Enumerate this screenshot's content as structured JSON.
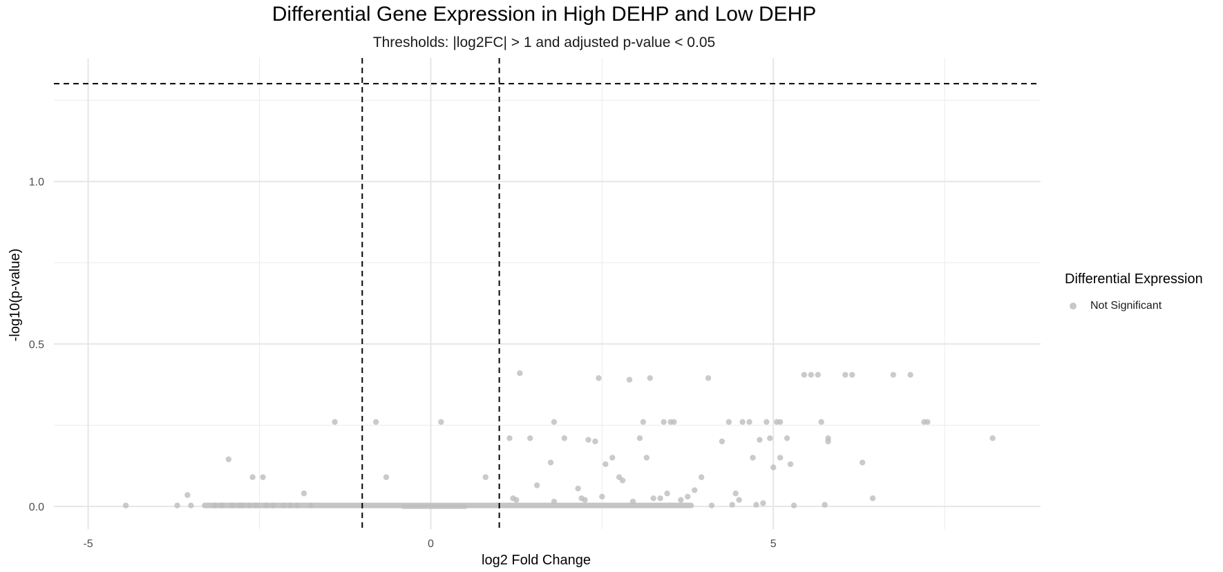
{
  "chart_data": {
    "type": "scatter",
    "title": "Differential Gene Expression in High DEHP and Low DEHP",
    "subtitle": "Thresholds: |log2FC| > 1 and adjusted p-value < 0.05",
    "xlabel": "log2 Fold Change",
    "ylabel": "-log10(p-value)",
    "xlim": [
      -5.5,
      8.9
    ],
    "ylim": [
      -0.07,
      1.38
    ],
    "x_ticks": [
      -5,
      0,
      5
    ],
    "x_tick_labels": [
      "-5",
      "0",
      "5"
    ],
    "y_ticks": [
      0,
      0.5,
      1
    ],
    "y_tick_labels": [
      "0.0",
      "0.5",
      "1.0"
    ],
    "grid": true,
    "thresholds": {
      "vertical": [
        -1,
        1
      ],
      "horizontal": 1.301
    },
    "legend": {
      "title": "Differential Expression",
      "position": "right",
      "entries": [
        "Not Significant"
      ]
    },
    "colors": {
      "not_significant": "#bdbdbd",
      "threshold_line": "#000000",
      "grid": "#ebebeb"
    },
    "series": [
      {
        "name": "Not Significant",
        "points": [
          [
            -4.45,
            0.003
          ],
          [
            -3.7,
            0.003
          ],
          [
            -3.55,
            0.035
          ],
          [
            -3.5,
            0.003
          ],
          [
            -3.15,
            0.003
          ],
          [
            -3.05,
            0.003
          ],
          [
            -2.95,
            0.145
          ],
          [
            -2.9,
            0.003
          ],
          [
            -2.8,
            0.003
          ],
          [
            -2.75,
            0.003
          ],
          [
            -2.65,
            0.003
          ],
          [
            -2.6,
            0.09
          ],
          [
            -2.55,
            0.003
          ],
          [
            -2.45,
            0.09
          ],
          [
            -2.4,
            0.003
          ],
          [
            -2.3,
            0.003
          ],
          [
            -2.15,
            0.003
          ],
          [
            -2.05,
            0.003
          ],
          [
            -1.95,
            0.003
          ],
          [
            -1.85,
            0.04
          ],
          [
            -1.75,
            0.003
          ],
          [
            -1.4,
            0.26
          ],
          [
            -0.8,
            0.26
          ],
          [
            -0.65,
            0.09
          ],
          [
            0.15,
            0.26
          ],
          [
            0.8,
            0.09
          ],
          [
            1.15,
            0.21
          ],
          [
            1.2,
            0.025
          ],
          [
            1.25,
            0.02
          ],
          [
            1.3,
            0.41
          ],
          [
            1.45,
            0.21
          ],
          [
            1.55,
            0.065
          ],
          [
            1.75,
            0.135
          ],
          [
            1.8,
            0.015
          ],
          [
            1.8,
            0.26
          ],
          [
            1.95,
            0.21
          ],
          [
            2.15,
            0.055
          ],
          [
            2.2,
            0.025
          ],
          [
            2.25,
            0.02
          ],
          [
            2.3,
            0.205
          ],
          [
            2.4,
            0.2
          ],
          [
            2.45,
            0.395
          ],
          [
            2.5,
            0.03
          ],
          [
            2.55,
            0.13
          ],
          [
            2.65,
            0.15
          ],
          [
            2.75,
            0.09
          ],
          [
            2.8,
            0.08
          ],
          [
            2.9,
            0.39
          ],
          [
            2.95,
            0.015
          ],
          [
            3.05,
            0.21
          ],
          [
            3.1,
            0.26
          ],
          [
            3.15,
            0.15
          ],
          [
            3.2,
            0.395
          ],
          [
            3.25,
            0.025
          ],
          [
            3.35,
            0.025
          ],
          [
            3.4,
            0.26
          ],
          [
            3.45,
            0.04
          ],
          [
            3.5,
            0.26
          ],
          [
            3.55,
            0.26
          ],
          [
            3.65,
            0.02
          ],
          [
            3.75,
            0.03
          ],
          [
            3.85,
            0.05
          ],
          [
            3.95,
            0.09
          ],
          [
            4.05,
            0.395
          ],
          [
            4.1,
            0.003
          ],
          [
            4.25,
            0.2
          ],
          [
            4.35,
            0.26
          ],
          [
            4.4,
            0.005
          ],
          [
            4.45,
            0.04
          ],
          [
            4.5,
            0.02
          ],
          [
            4.55,
            0.26
          ],
          [
            4.65,
            0.26
          ],
          [
            4.7,
            0.15
          ],
          [
            4.75,
            0.005
          ],
          [
            4.8,
            0.205
          ],
          [
            4.85,
            0.01
          ],
          [
            4.9,
            0.26
          ],
          [
            4.95,
            0.21
          ],
          [
            5.0,
            0.12
          ],
          [
            5.05,
            0.26
          ],
          [
            5.1,
            0.26
          ],
          [
            5.1,
            0.15
          ],
          [
            5.2,
            0.21
          ],
          [
            5.25,
            0.13
          ],
          [
            5.3,
            0.003
          ],
          [
            5.45,
            0.405
          ],
          [
            5.55,
            0.405
          ],
          [
            5.65,
            0.405
          ],
          [
            5.7,
            0.26
          ],
          [
            5.75,
            0.005
          ],
          [
            5.8,
            0.2
          ],
          [
            5.8,
            0.21
          ],
          [
            6.05,
            0.405
          ],
          [
            6.15,
            0.405
          ],
          [
            6.3,
            0.135
          ],
          [
            6.45,
            0.025
          ],
          [
            6.75,
            0.405
          ],
          [
            7.0,
            0.405
          ],
          [
            7.2,
            0.26
          ],
          [
            7.25,
            0.26
          ],
          [
            8.2,
            0.21
          ]
        ]
      }
    ]
  }
}
